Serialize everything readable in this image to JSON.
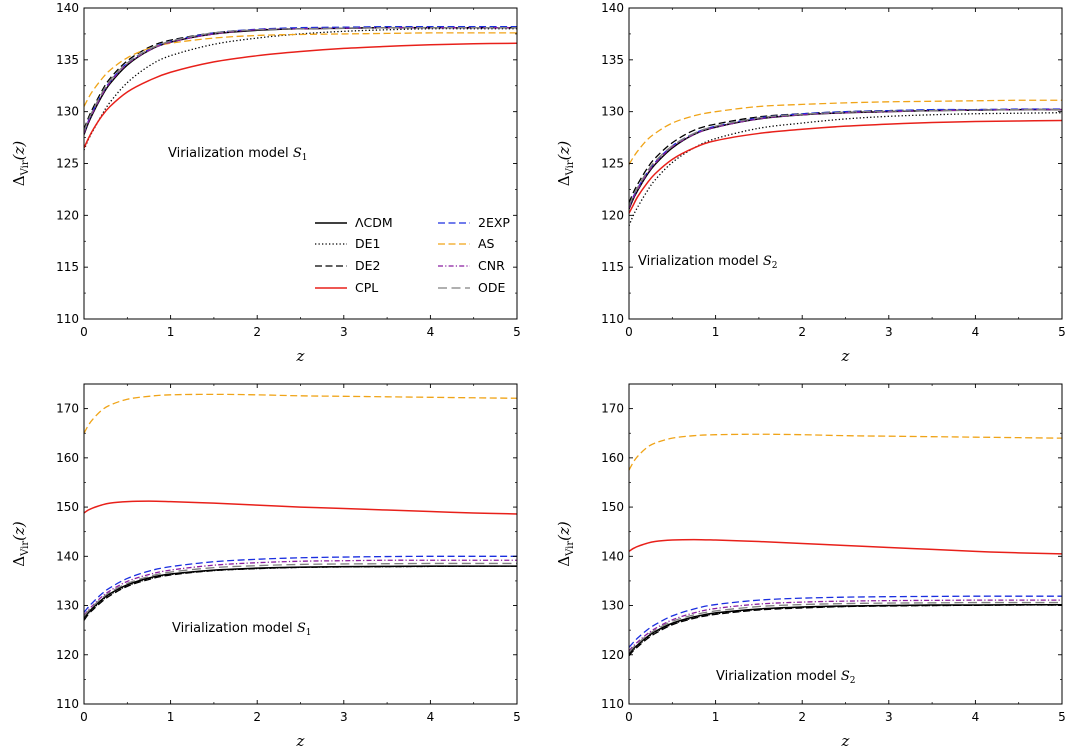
{
  "chart_data": [
    {
      "type": "line",
      "panel": "top-left",
      "annotation": {
        "text": "Virialization model ",
        "sym": "S",
        "sub": "1"
      },
      "xlabel": "z",
      "ylabel": {
        "main": "Δ",
        "sub": "Vir",
        "arg": "(z)"
      },
      "xlim": [
        0,
        5
      ],
      "ylim": [
        110,
        140
      ],
      "xticks": [
        "0",
        "1",
        "2",
        "3",
        "4",
        "5"
      ],
      "yticks": [
        "110",
        "115",
        "120",
        "125",
        "130",
        "135",
        "140"
      ],
      "legend": {
        "placement": "lower-right",
        "columns": 2
      },
      "x": [
        0,
        0.05,
        0.1,
        0.2,
        0.3,
        0.5,
        0.75,
        1,
        1.5,
        2,
        2.5,
        3,
        3.5,
        4,
        4.5,
        5
      ],
      "series": [
        {
          "name": "ΛCDM",
          "color": "#000000",
          "dash": "solid",
          "values": [
            127.8,
            128.9,
            129.8,
            131.4,
            132.7,
            134.5,
            135.9,
            136.7,
            137.5,
            137.85,
            138.0,
            138.05,
            138.1,
            138.1,
            138.1,
            138.1
          ]
        },
        {
          "name": "DE1",
          "color": "#000000",
          "dash": "dotted",
          "values": [
            126.3,
            127.3,
            128.1,
            129.6,
            130.9,
            132.8,
            134.4,
            135.4,
            136.5,
            137.1,
            137.5,
            137.75,
            137.9,
            138.0,
            138.0,
            138.0
          ]
        },
        {
          "name": "DE2",
          "color": "#000000",
          "dash": "dashed",
          "values": [
            128.3,
            129.4,
            130.3,
            131.9,
            133.2,
            134.9,
            136.2,
            136.9,
            137.6,
            137.9,
            138.0,
            138.05,
            138.1,
            138.1,
            138.1,
            138.1
          ]
        },
        {
          "name": "CPL",
          "color": "#e8201a",
          "dash": "solid",
          "values": [
            126.5,
            127.4,
            128.2,
            129.5,
            130.5,
            131.9,
            133.0,
            133.8,
            134.8,
            135.4,
            135.8,
            136.1,
            136.3,
            136.45,
            136.55,
            136.6
          ]
        },
        {
          "name": "2EXP",
          "color": "#1a2ee0",
          "dash": "dashed",
          "values": [
            128.0,
            129.1,
            130.0,
            131.6,
            132.9,
            134.7,
            136.0,
            136.8,
            137.6,
            137.95,
            138.1,
            138.15,
            138.2,
            138.2,
            138.2,
            138.2
          ]
        },
        {
          "name": "AS",
          "color": "#f0a418",
          "dash": "dashed",
          "values": [
            130.5,
            131.3,
            132.0,
            133.1,
            134.0,
            135.2,
            136.1,
            136.6,
            137.1,
            137.35,
            137.45,
            137.5,
            137.55,
            137.6,
            137.6,
            137.6
          ]
        },
        {
          "name": "CNR",
          "color": "#8a1fa0",
          "dash": "dashdot",
          "values": [
            127.9,
            129.0,
            129.9,
            131.5,
            132.8,
            134.6,
            135.9,
            136.7,
            137.5,
            137.9,
            138.0,
            138.05,
            138.1,
            138.1,
            138.1,
            138.1
          ]
        },
        {
          "name": "ODE",
          "color": "#808080",
          "dash": "longdash",
          "values": [
            128.1,
            129.2,
            130.1,
            131.7,
            133.0,
            134.7,
            136.0,
            136.8,
            137.6,
            137.9,
            138.0,
            138.05,
            138.1,
            138.1,
            138.1,
            138.1
          ]
        }
      ]
    },
    {
      "type": "line",
      "panel": "top-right",
      "annotation": {
        "text": "Virialization model ",
        "sym": "S",
        "sub": "2"
      },
      "xlabel": "z",
      "ylabel": {
        "main": "Δ",
        "sub": "Vir",
        "arg": "(z)"
      },
      "xlim": [
        0,
        5
      ],
      "ylim": [
        110,
        140
      ],
      "xticks": [
        "0",
        "1",
        "2",
        "3",
        "4",
        "5"
      ],
      "yticks": [
        "110",
        "115",
        "120",
        "125",
        "130",
        "135",
        "140"
      ],
      "x": [
        0,
        0.05,
        0.1,
        0.2,
        0.3,
        0.5,
        0.75,
        1,
        1.5,
        2,
        2.5,
        3,
        3.5,
        4,
        4.5,
        5
      ],
      "series": [
        {
          "name": "ΛCDM",
          "color": "#000000",
          "dash": "solid",
          "values": [
            120.6,
            121.6,
            122.4,
            123.8,
            124.9,
            126.5,
            127.8,
            128.5,
            129.3,
            129.7,
            129.9,
            130.0,
            130.1,
            130.15,
            130.2,
            130.2
          ]
        },
        {
          "name": "DE1",
          "color": "#000000",
          "dash": "dotted",
          "values": [
            119.0,
            120.0,
            120.8,
            122.2,
            123.4,
            125.1,
            126.5,
            127.4,
            128.4,
            128.9,
            129.3,
            129.55,
            129.7,
            129.8,
            129.85,
            129.9
          ]
        },
        {
          "name": "DE2",
          "color": "#000000",
          "dash": "dashed",
          "values": [
            121.2,
            122.2,
            123.0,
            124.4,
            125.5,
            127.0,
            128.2,
            128.8,
            129.5,
            129.8,
            130.0,
            130.1,
            130.15,
            130.2,
            130.2,
            130.2
          ]
        },
        {
          "name": "CPL",
          "color": "#e8201a",
          "dash": "solid",
          "values": [
            120.2,
            121.0,
            121.8,
            123.0,
            124.0,
            125.4,
            126.5,
            127.2,
            127.9,
            128.3,
            128.6,
            128.8,
            128.95,
            129.05,
            129.1,
            129.15
          ]
        },
        {
          "name": "2EXP",
          "color": "#1a2ee0",
          "dash": "dashed",
          "values": [
            120.8,
            121.8,
            122.6,
            124.0,
            125.1,
            126.7,
            127.9,
            128.6,
            129.4,
            129.8,
            130.0,
            130.1,
            130.2,
            130.2,
            130.25,
            130.25
          ]
        },
        {
          "name": "AS",
          "color": "#f0a418",
          "dash": "dashed",
          "values": [
            124.9,
            125.6,
            126.2,
            127.2,
            127.9,
            128.9,
            129.6,
            130.0,
            130.5,
            130.7,
            130.85,
            130.95,
            131.0,
            131.05,
            131.1,
            131.1
          ]
        },
        {
          "name": "CNR",
          "color": "#8a1fa0",
          "dash": "dashdot",
          "values": [
            120.7,
            121.7,
            122.5,
            123.9,
            125.0,
            126.6,
            127.8,
            128.5,
            129.3,
            129.7,
            129.9,
            130.0,
            130.1,
            130.15,
            130.2,
            130.2
          ]
        },
        {
          "name": "ODE",
          "color": "#808080",
          "dash": "longdash",
          "values": [
            120.9,
            121.9,
            122.7,
            124.1,
            125.2,
            126.7,
            127.9,
            128.6,
            129.4,
            129.75,
            129.95,
            130.05,
            130.1,
            130.15,
            130.2,
            130.2
          ]
        }
      ]
    },
    {
      "type": "line",
      "panel": "bottom-left",
      "annotation": {
        "text": "Virialization model ",
        "sym": "S",
        "sub": "1"
      },
      "xlabel": "z",
      "ylabel": {
        "main": "Δ",
        "sub": "Vir",
        "arg": "(z)"
      },
      "xlim": [
        0,
        5
      ],
      "ylim": [
        110,
        175
      ],
      "xticks": [
        "0",
        "1",
        "2",
        "3",
        "4",
        "5"
      ],
      "yticks": [
        "110",
        "120",
        "130",
        "140",
        "150",
        "160",
        "170"
      ],
      "x": [
        0,
        0.05,
        0.1,
        0.2,
        0.3,
        0.5,
        0.75,
        1,
        1.5,
        2,
        2.5,
        3,
        3.5,
        4,
        4.5,
        5
      ],
      "series": [
        {
          "name": "ΛCDM",
          "color": "#000000",
          "dash": "solid",
          "values": [
            127.5,
            128.6,
            129.5,
            131.1,
            132.4,
            134.2,
            135.6,
            136.4,
            137.2,
            137.6,
            137.8,
            137.9,
            137.95,
            138.0,
            138.0,
            138.0
          ]
        },
        {
          "name": "DE1",
          "color": "#000000",
          "dash": "dotted",
          "values": [
            127.3,
            128.4,
            129.3,
            130.9,
            132.2,
            134.0,
            135.4,
            136.3,
            137.1,
            137.5,
            137.75,
            137.85,
            137.9,
            137.95,
            138.0,
            138.0
          ]
        },
        {
          "name": "DE2",
          "color": "#000000",
          "dash": "dashed",
          "values": [
            127.0,
            128.2,
            129.1,
            130.7,
            132.0,
            133.9,
            135.3,
            136.2,
            137.1,
            137.5,
            137.75,
            137.85,
            137.9,
            137.95,
            138.0,
            138.0
          ]
        },
        {
          "name": "CPL",
          "color": "#e8201a",
          "dash": "solid",
          "values": [
            148.8,
            149.4,
            149.8,
            150.4,
            150.8,
            151.1,
            151.2,
            151.1,
            150.8,
            150.4,
            150.0,
            149.7,
            149.4,
            149.1,
            148.8,
            148.6
          ]
        },
        {
          "name": "2EXP",
          "color": "#1a2ee0",
          "dash": "dashed",
          "values": [
            128.6,
            129.7,
            130.6,
            132.3,
            133.6,
            135.5,
            137.0,
            137.9,
            138.9,
            139.4,
            139.7,
            139.85,
            139.95,
            140.0,
            140.0,
            140.0
          ]
        },
        {
          "name": "AS",
          "color": "#f0a418",
          "dash": "dashed",
          "values": [
            165.0,
            166.6,
            167.8,
            169.6,
            170.7,
            171.9,
            172.5,
            172.8,
            172.9,
            172.8,
            172.6,
            172.5,
            172.4,
            172.3,
            172.2,
            172.1
          ]
        },
        {
          "name": "CNR",
          "color": "#8a1fa0",
          "dash": "dashdot",
          "values": [
            128.0,
            129.1,
            130.0,
            131.7,
            133.0,
            134.9,
            136.3,
            137.2,
            138.2,
            138.7,
            139.0,
            139.1,
            139.2,
            139.2,
            139.2,
            139.2
          ]
        },
        {
          "name": "ODE",
          "color": "#808080",
          "dash": "longdash",
          "values": [
            127.8,
            128.9,
            129.8,
            131.4,
            132.7,
            134.5,
            135.9,
            136.8,
            137.7,
            138.1,
            138.35,
            138.45,
            138.5,
            138.55,
            138.55,
            138.55
          ]
        }
      ]
    },
    {
      "type": "line",
      "panel": "bottom-right",
      "annotation": {
        "text": "Virialization model ",
        "sym": "S",
        "sub": "2"
      },
      "xlabel": "z",
      "ylabel": {
        "main": "Δ",
        "sub": "Vir",
        "arg": "(z)"
      },
      "xlim": [
        0,
        5
      ],
      "ylim": [
        110,
        175
      ],
      "xticks": [
        "0",
        "1",
        "2",
        "3",
        "4",
        "5"
      ],
      "yticks": [
        "110",
        "120",
        "130",
        "140",
        "150",
        "160",
        "170"
      ],
      "x": [
        0,
        0.05,
        0.1,
        0.2,
        0.3,
        0.5,
        0.75,
        1,
        1.5,
        2,
        2.5,
        3,
        3.5,
        4,
        4.5,
        5
      ],
      "series": [
        {
          "name": "ΛCDM",
          "color": "#000000",
          "dash": "solid",
          "values": [
            120.2,
            121.2,
            122.0,
            123.5,
            124.7,
            126.4,
            127.7,
            128.5,
            129.3,
            129.7,
            129.9,
            130.0,
            130.1,
            130.1,
            130.15,
            130.15
          ]
        },
        {
          "name": "DE1",
          "color": "#000000",
          "dash": "dotted",
          "values": [
            120.0,
            121.0,
            121.8,
            123.3,
            124.5,
            126.2,
            127.5,
            128.3,
            129.2,
            129.6,
            129.8,
            129.95,
            130.0,
            130.05,
            130.1,
            130.1
          ]
        },
        {
          "name": "DE2",
          "color": "#000000",
          "dash": "dashed",
          "values": [
            119.8,
            120.8,
            121.6,
            123.1,
            124.3,
            126.1,
            127.4,
            128.2,
            129.1,
            129.5,
            129.8,
            129.9,
            130.0,
            130.05,
            130.1,
            130.1
          ]
        },
        {
          "name": "CPL",
          "color": "#e8201a",
          "dash": "solid",
          "values": [
            141.0,
            141.6,
            142.0,
            142.6,
            143.0,
            143.3,
            143.4,
            143.3,
            143.0,
            142.6,
            142.2,
            141.8,
            141.4,
            141.0,
            140.7,
            140.5
          ]
        },
        {
          "name": "2EXP",
          "color": "#1a2ee0",
          "dash": "dashed",
          "values": [
            121.5,
            122.5,
            123.4,
            124.9,
            126.1,
            127.9,
            129.3,
            130.2,
            131.1,
            131.5,
            131.7,
            131.8,
            131.85,
            131.9,
            131.9,
            131.9
          ]
        },
        {
          "name": "AS",
          "color": "#f0a418",
          "dash": "dashed",
          "values": [
            157.5,
            159.1,
            160.3,
            162.0,
            163.0,
            164.0,
            164.5,
            164.7,
            164.8,
            164.7,
            164.5,
            164.4,
            164.3,
            164.2,
            164.1,
            164.0
          ]
        },
        {
          "name": "CNR",
          "color": "#8a1fa0",
          "dash": "dashdot",
          "values": [
            120.8,
            121.8,
            122.6,
            124.1,
            125.3,
            127.1,
            128.5,
            129.4,
            130.3,
            130.7,
            130.9,
            131.0,
            131.05,
            131.1,
            131.1,
            131.1
          ]
        },
        {
          "name": "ODE",
          "color": "#808080",
          "dash": "longdash",
          "values": [
            120.5,
            121.5,
            122.3,
            123.8,
            125.0,
            126.8,
            128.1,
            128.9,
            129.8,
            130.2,
            130.4,
            130.5,
            130.55,
            130.6,
            130.6,
            130.6
          ]
        }
      ]
    }
  ]
}
